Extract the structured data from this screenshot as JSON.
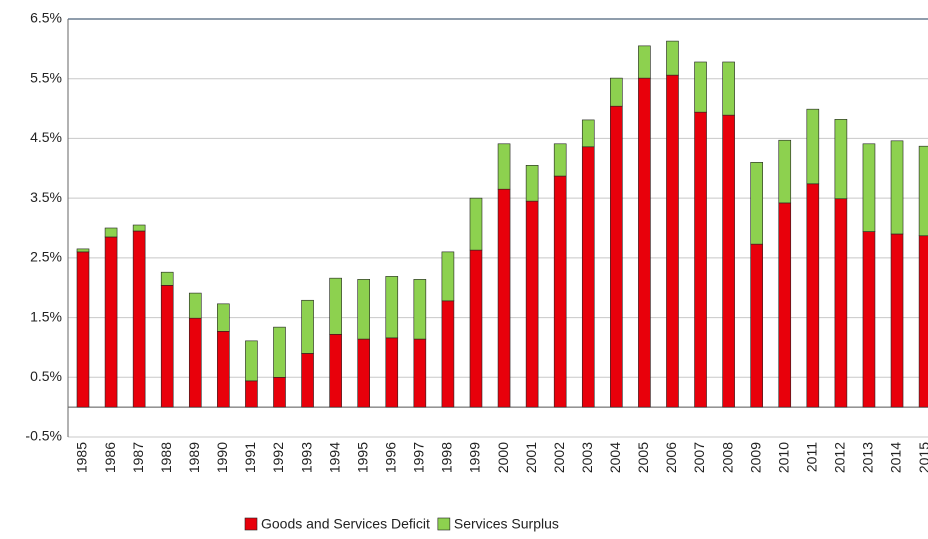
{
  "chart_data": {
    "type": "stacked-bar",
    "categories": [
      "1985",
      "1986",
      "1987",
      "1988",
      "1989",
      "1990",
      "1991",
      "1992",
      "1993",
      "1994",
      "1995",
      "1996",
      "1997",
      "1998",
      "1999",
      "2000",
      "2001",
      "2002",
      "2003",
      "2004",
      "2005",
      "2006",
      "2007",
      "2008",
      "2009",
      "2010",
      "2011",
      "2012",
      "2013",
      "2014",
      "2015"
    ],
    "series": [
      {
        "name": "Goods and Services Deficit",
        "color": "#e8000b",
        "values": [
          2.6,
          2.85,
          2.95,
          2.04,
          1.49,
          1.27,
          0.44,
          0.5,
          0.9,
          1.22,
          1.14,
          1.16,
          1.14,
          1.78,
          2.63,
          3.65,
          3.45,
          3.87,
          4.36,
          5.04,
          5.51,
          5.56,
          4.94,
          4.89,
          2.73,
          3.42,
          3.74,
          3.49,
          2.94,
          2.9,
          2.87
        ]
      },
      {
        "name": "Services Surplus",
        "color": "#8dd14f",
        "values": [
          0.05,
          0.15,
          0.1,
          0.22,
          0.42,
          0.46,
          0.67,
          0.84,
          0.89,
          0.94,
          1.0,
          1.03,
          1.0,
          0.82,
          0.87,
          0.76,
          0.6,
          0.54,
          0.45,
          0.47,
          0.54,
          0.57,
          0.84,
          0.89,
          1.37,
          1.05,
          1.25,
          1.33,
          1.47,
          1.56,
          1.5
        ]
      }
    ],
    "ylim": [
      -0.5,
      6.5
    ],
    "yticks": [
      {
        "value": -0.5,
        "label": "-0.5%"
      },
      {
        "value": 0.5,
        "label": "0.5%"
      },
      {
        "value": 1.5,
        "label": "1.5%"
      },
      {
        "value": 2.5,
        "label": "2.5%"
      },
      {
        "value": 3.5,
        "label": "3.5%"
      },
      {
        "value": 4.5,
        "label": "4.5%"
      },
      {
        "value": 5.5,
        "label": "5.5%"
      },
      {
        "value": 6.5,
        "label": "6.5%"
      }
    ],
    "grid": true
  }
}
